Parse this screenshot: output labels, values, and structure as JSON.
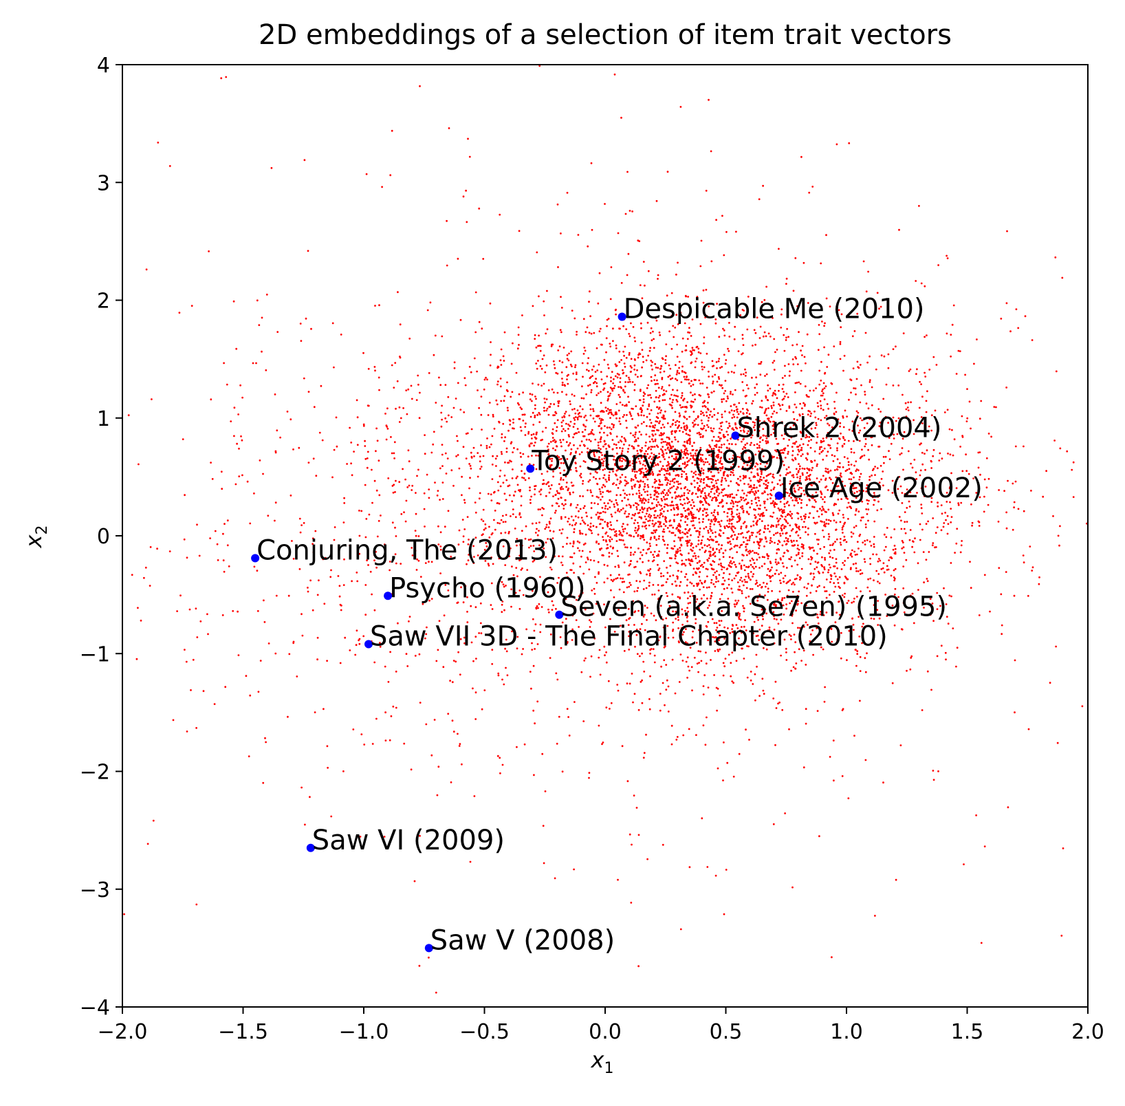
{
  "chart_data": {
    "type": "scatter",
    "title": "2D embeddings of a selection of item trait vectors",
    "xlabel": "x",
    "xlabel_sub": "1",
    "ylabel": "x",
    "ylabel_sub": "2",
    "xlim": [
      -2.0,
      2.0
    ],
    "ylim": [
      -4,
      4
    ],
    "xticks": [
      -2.0,
      -1.5,
      -1.0,
      -0.5,
      0.0,
      0.5,
      1.0,
      1.5,
      2.0
    ],
    "xtick_labels": [
      "−2.0",
      "−1.5",
      "−1.0",
      "−0.5",
      "0.0",
      "0.5",
      "1.0",
      "1.5",
      "2.0"
    ],
    "yticks": [
      -4,
      -3,
      -2,
      -1,
      0,
      1,
      2,
      3,
      4
    ],
    "ytick_labels": [
      "−4",
      "−3",
      "−2",
      "−1",
      "0",
      "1",
      "2",
      "3",
      "4"
    ],
    "grid": false,
    "background_points": {
      "color": "#ff0000",
      "count": 6500,
      "clusters": [
        {
          "cx": 0.15,
          "cy": 0.8,
          "sx": 0.35,
          "sy": 0.55,
          "weight": 0.25
        },
        {
          "cx": 0.5,
          "cy": 0.2,
          "sx": 0.35,
          "sy": 0.6,
          "weight": 0.3
        },
        {
          "cx": 0.8,
          "cy": 0.4,
          "sx": 0.45,
          "sy": 0.7,
          "weight": 0.2
        },
        {
          "cx": -0.3,
          "cy": 0.1,
          "sx": 0.7,
          "sy": 1.0,
          "weight": 0.17
        },
        {
          "cx": 0.0,
          "cy": 0.0,
          "sx": 1.1,
          "sy": 1.8,
          "weight": 0.08
        }
      ]
    },
    "highlighted": {
      "color": "#0000ff",
      "points": [
        {
          "label": "Despicable Me (2010)",
          "x": 0.07,
          "y": 1.86
        },
        {
          "label": "Shrek 2 (2004)",
          "x": 0.54,
          "y": 0.85
        },
        {
          "label": "Toy Story 2 (1999)",
          "x": -0.31,
          "y": 0.57
        },
        {
          "label": "Ice Age (2002)",
          "x": 0.72,
          "y": 0.34
        },
        {
          "label": "Conjuring, The (2013)",
          "x": -1.45,
          "y": -0.19
        },
        {
          "label": "Psycho (1960)",
          "x": -0.9,
          "y": -0.51
        },
        {
          "label": "Seven (a.k.a. Se7en) (1995)",
          "x": -0.19,
          "y": -0.67
        },
        {
          "label": "Saw VII 3D - The Final Chapter (2010)",
          "x": -0.98,
          "y": -0.92
        },
        {
          "label": "Saw VI (2009)",
          "x": -1.22,
          "y": -2.65
        },
        {
          "label": "Saw V (2008)",
          "x": -0.73,
          "y": -3.5
        }
      ]
    }
  }
}
